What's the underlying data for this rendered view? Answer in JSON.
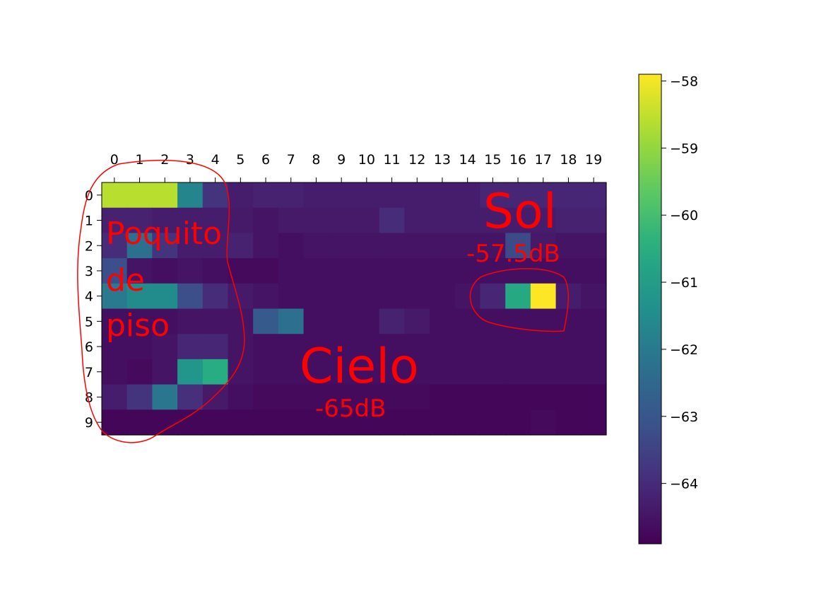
{
  "chart_data": {
    "type": "heatmap",
    "colormap": "viridis",
    "x_ticks": [
      0,
      1,
      2,
      3,
      4,
      5,
      6,
      7,
      8,
      9,
      10,
      11,
      12,
      13,
      14,
      15,
      16,
      17,
      18,
      19
    ],
    "y_ticks": [
      0,
      1,
      2,
      3,
      4,
      5,
      6,
      7,
      8,
      9
    ],
    "x_axis_position": "top",
    "value_range": [
      -64.9,
      -57.9
    ],
    "colorbar": {
      "placement": "right",
      "ticks": [
        -58,
        -59,
        -60,
        -61,
        -62,
        -63,
        -64
      ]
    },
    "values": [
      [
        -58.6,
        -58.6,
        -58.6,
        -61.7,
        -63.8,
        -64.3,
        -64.2,
        -64.2,
        -64.3,
        -64.3,
        -64.3,
        -64.3,
        -64.3,
        -64.3,
        -64.3,
        -64.1,
        -64.1,
        -64.1,
        -64.1,
        -64.1
      ],
      [
        -64.2,
        -64.2,
        -64.3,
        -64.3,
        -64.3,
        -64.4,
        -64.5,
        -64.4,
        -64.4,
        -64.4,
        -64.4,
        -64.0,
        -64.3,
        -64.3,
        -64.3,
        -64.3,
        -64.3,
        -64.3,
        -64.2,
        -64.2
      ],
      [
        -64.0,
        -62.3,
        -63.8,
        -64.3,
        -64.3,
        -64.2,
        -64.5,
        -64.6,
        -64.5,
        -64.5,
        -64.5,
        -64.5,
        -64.5,
        -64.5,
        -64.5,
        -64.5,
        -63.3,
        -64.4,
        -64.5,
        -64.5
      ],
      [
        -63.2,
        -64.5,
        -64.6,
        -64.5,
        -64.6,
        -64.7,
        -64.7,
        -64.6,
        -64.6,
        -64.6,
        -64.6,
        -64.6,
        -64.6,
        -64.6,
        -64.6,
        -64.6,
        -64.6,
        -64.6,
        -64.6,
        -64.6
      ],
      [
        -62.0,
        -61.5,
        -61.5,
        -63.2,
        -64.0,
        -64.4,
        -64.5,
        -64.6,
        -64.6,
        -64.6,
        -64.6,
        -64.6,
        -64.6,
        -64.6,
        -64.5,
        -64.1,
        -60.6,
        -57.9,
        -64.3,
        -64.5
      ],
      [
        -64.6,
        -64.6,
        -64.6,
        -64.5,
        -64.5,
        -64.5,
        -62.9,
        -62.3,
        -64.6,
        -64.6,
        -64.6,
        -64.2,
        -64.4,
        -64.6,
        -64.6,
        -64.6,
        -64.6,
        -64.6,
        -64.6,
        -64.6
      ],
      [
        -64.6,
        -64.6,
        -64.5,
        -64.1,
        -64.1,
        -64.5,
        -64.6,
        -64.6,
        -64.6,
        -64.6,
        -64.6,
        -64.6,
        -64.6,
        -64.6,
        -64.6,
        -64.6,
        -64.6,
        -64.6,
        -64.6,
        -64.6
      ],
      [
        -64.6,
        -64.7,
        -64.5,
        -61.2,
        -60.5,
        -64.5,
        -64.6,
        -64.6,
        -64.6,
        -64.6,
        -64.6,
        -64.6,
        -64.6,
        -64.6,
        -64.6,
        -64.6,
        -64.6,
        -64.6,
        -64.6,
        -64.6
      ],
      [
        -64.3,
        -63.8,
        -62.1,
        -63.9,
        -64.4,
        -64.6,
        -64.7,
        -64.7,
        -64.7,
        -64.7,
        -64.7,
        -64.7,
        -64.7,
        -64.8,
        -64.8,
        -64.8,
        -64.8,
        -64.8,
        -64.8,
        -64.8
      ],
      [
        -64.8,
        -64.8,
        -64.8,
        -64.8,
        -64.8,
        -64.8,
        -64.8,
        -64.8,
        -64.8,
        -64.8,
        -64.8,
        -64.8,
        -64.8,
        -64.8,
        -64.8,
        -64.8,
        -64.8,
        -64.7,
        -64.8,
        -64.8
      ]
    ],
    "annotations": {
      "left_label": [
        "Poquito",
        "de",
        "piso"
      ],
      "center_title": "Cielo",
      "center_value": "-65dB",
      "right_title": "Sol",
      "right_value": "-57.5dB"
    },
    "annotation_color": "#ff0000"
  }
}
